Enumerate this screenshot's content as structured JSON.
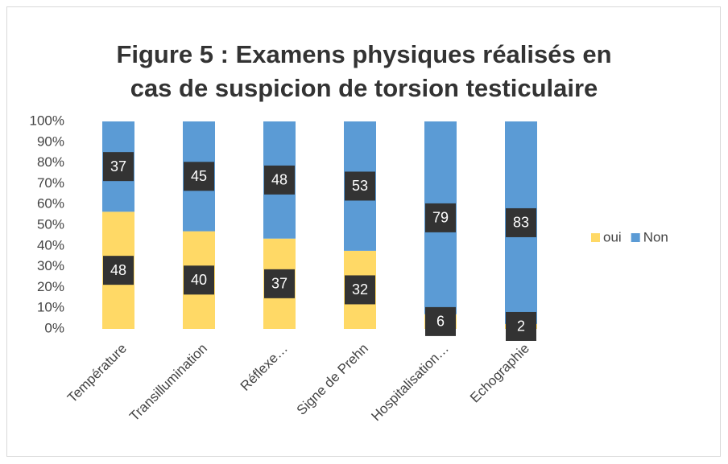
{
  "chart_data": {
    "type": "bar",
    "stack": "percent",
    "title": [
      "Figure 5 : Examens physiques réalisés en",
      "cas de suspicion de torsion testiculaire"
    ],
    "categories": [
      "Température",
      "Transillumination",
      "Réflexe…",
      "Signe de Prehn",
      "Hospitalisation…",
      "Echographie"
    ],
    "series": [
      {
        "name": "oui",
        "color": "#ffd966",
        "values": [
          48,
          40,
          37,
          32,
          6,
          2
        ]
      },
      {
        "name": "Non",
        "color": "#5b9bd5",
        "values": [
          37,
          45,
          48,
          53,
          79,
          83
        ]
      }
    ],
    "ylim": [
      0,
      100
    ],
    "yticks": [
      {
        "value": 0,
        "label": "0%"
      },
      {
        "value": 10,
        "label": "10%"
      },
      {
        "value": 20,
        "label": "20%"
      },
      {
        "value": 30,
        "label": "30%"
      },
      {
        "value": 40,
        "label": "40%"
      },
      {
        "value": 50,
        "label": "50%"
      },
      {
        "value": 60,
        "label": "60%"
      },
      {
        "value": 70,
        "label": "70%"
      },
      {
        "value": 80,
        "label": "80%"
      },
      {
        "value": 90,
        "label": "90%"
      },
      {
        "value": 100,
        "label": "100%"
      }
    ],
    "legend": "right"
  }
}
